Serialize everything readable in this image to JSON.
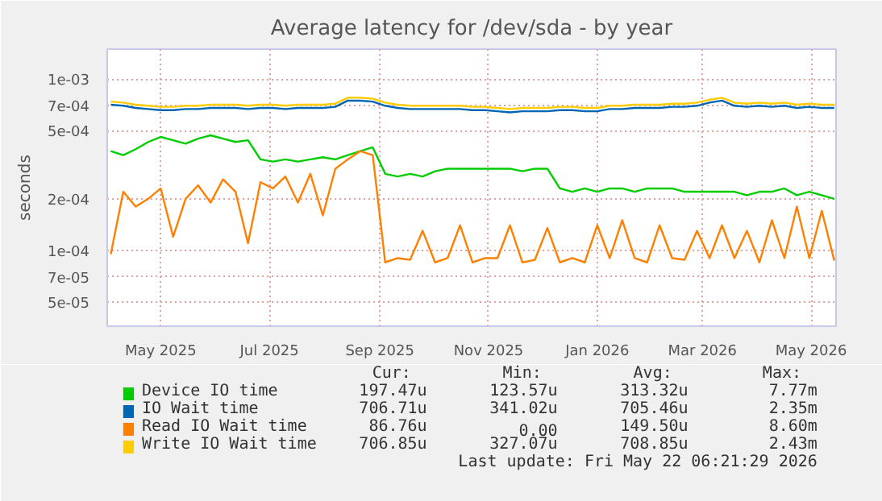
{
  "chart_data": {
    "type": "line",
    "title": "Average latency for /dev/sda - by year",
    "ylabel": "seconds",
    "log": true,
    "grid": true,
    "legend": "bottom",
    "line_style": "solid",
    "marker": "none",
    "x": [
      "2025-04-03",
      "2025-04-10",
      "2025-04-17",
      "2025-04-24",
      "2025-05-01",
      "2025-05-08",
      "2025-05-15",
      "2025-05-22",
      "2025-05-29",
      "2025-06-05",
      "2025-06-12",
      "2025-06-19",
      "2025-06-26",
      "2025-07-03",
      "2025-07-10",
      "2025-07-17",
      "2025-07-24",
      "2025-07-31",
      "2025-08-07",
      "2025-08-14",
      "2025-08-21",
      "2025-08-28",
      "2025-09-04",
      "2025-09-11",
      "2025-09-18",
      "2025-09-25",
      "2025-10-02",
      "2025-10-09",
      "2025-10-16",
      "2025-10-23",
      "2025-10-30",
      "2025-11-06",
      "2025-11-13",
      "2025-11-20",
      "2025-11-27",
      "2025-12-04",
      "2025-12-11",
      "2025-12-18",
      "2025-12-25",
      "2026-01-01",
      "2026-01-08",
      "2026-01-15",
      "2026-01-22",
      "2026-01-29",
      "2026-02-05",
      "2026-02-12",
      "2026-02-19",
      "2026-02-26",
      "2026-03-05",
      "2026-03-12",
      "2026-03-19",
      "2026-03-26",
      "2026-04-02",
      "2026-04-09",
      "2026-04-16",
      "2026-04-23",
      "2026-04-30",
      "2026-05-07",
      "2026-05-14"
    ],
    "xlim": [
      "2025-04-01",
      "2026-05-15"
    ],
    "xticks": [
      {
        "value": "2025-05-01",
        "label": "May 2025"
      },
      {
        "value": "2025-07-01",
        "label": "Jul 2025"
      },
      {
        "value": "2025-09-01",
        "label": "Sep 2025"
      },
      {
        "value": "2025-11-01",
        "label": "Nov 2025"
      },
      {
        "value": "2026-01-01",
        "label": "Jan 2026"
      },
      {
        "value": "2026-03-01",
        "label": "Mar 2026"
      },
      {
        "value": "2026-05-01",
        "label": "May 2026"
      }
    ],
    "ylim": [
      3.6e-05,
      0.0015
    ],
    "yticks": [
      {
        "value": 5e-05,
        "label": "5e-05"
      },
      {
        "value": 7e-05,
        "label": "7e-05"
      },
      {
        "value": 0.0001,
        "label": "1e-04"
      },
      {
        "value": 0.0002,
        "label": "2e-04"
      },
      {
        "value": 0.0005,
        "label": "5e-04"
      },
      {
        "value": 0.0007,
        "label": "7e-04"
      },
      {
        "value": 0.001,
        "label": "1e-03"
      }
    ],
    "series": [
      {
        "name": "Device IO time",
        "color": "#00cc00",
        "values": [
          0.00038,
          0.00036,
          0.00039,
          0.00043,
          0.00046,
          0.00044,
          0.00042,
          0.00045,
          0.00047,
          0.00045,
          0.00043,
          0.00044,
          0.00034,
          0.00033,
          0.00034,
          0.00033,
          0.00034,
          0.00035,
          0.00034,
          0.00036,
          0.00038,
          0.0004,
          0.00028,
          0.00027,
          0.00028,
          0.00027,
          0.00029,
          0.0003,
          0.0003,
          0.0003,
          0.0003,
          0.0003,
          0.0003,
          0.00029,
          0.0003,
          0.0003,
          0.00023,
          0.00022,
          0.00023,
          0.00022,
          0.00023,
          0.00023,
          0.00022,
          0.00023,
          0.00023,
          0.00023,
          0.00022,
          0.00022,
          0.00022,
          0.00022,
          0.00022,
          0.00021,
          0.00022,
          0.00022,
          0.00023,
          0.00021,
          0.00022,
          0.00021,
          0.0002
        ]
      },
      {
        "name": "IO Wait time",
        "color": "#0066b3",
        "values": [
          0.00071,
          0.0007,
          0.00068,
          0.00067,
          0.00066,
          0.00066,
          0.00067,
          0.00067,
          0.00068,
          0.00068,
          0.00068,
          0.00067,
          0.00068,
          0.00068,
          0.00067,
          0.00068,
          0.00068,
          0.00068,
          0.00069,
          0.00075,
          0.00075,
          0.00074,
          0.0007,
          0.00068,
          0.00067,
          0.00067,
          0.00067,
          0.00067,
          0.00067,
          0.00066,
          0.00066,
          0.00065,
          0.00064,
          0.00065,
          0.00065,
          0.00065,
          0.00066,
          0.00066,
          0.00065,
          0.00065,
          0.00067,
          0.00067,
          0.00068,
          0.00068,
          0.00068,
          0.00069,
          0.00069,
          0.0007,
          0.00073,
          0.00075,
          0.0007,
          0.00069,
          0.0007,
          0.00069,
          0.0007,
          0.00068,
          0.00069,
          0.00068,
          0.00068
        ]
      },
      {
        "name": "Read IO Wait time",
        "color": "#ff8000",
        "values": [
          9.5e-05,
          0.00022,
          0.00018,
          0.0002,
          0.00023,
          0.00012,
          0.0002,
          0.00024,
          0.00019,
          0.00026,
          0.00022,
          0.00011,
          0.00025,
          0.00023,
          0.00027,
          0.00019,
          0.00028,
          0.00016,
          0.0003,
          0.00034,
          0.00038,
          0.00036,
          8.5e-05,
          9e-05,
          8.8e-05,
          0.00013,
          8.5e-05,
          9e-05,
          0.00014,
          8.5e-05,
          9e-05,
          9e-05,
          0.00014,
          8.5e-05,
          8.8e-05,
          0.000135,
          8.5e-05,
          9e-05,
          8.5e-05,
          0.00014,
          9e-05,
          0.00015,
          9e-05,
          8.5e-05,
          0.00014,
          9e-05,
          8.8e-05,
          0.00013,
          9e-05,
          0.00014,
          9e-05,
          0.00013,
          8.5e-05,
          0.00015,
          9e-05,
          0.00018,
          9e-05,
          0.00017,
          8.7e-05
        ]
      },
      {
        "name": "Write IO Wait time",
        "color": "#ffcc00",
        "values": [
          0.00074,
          0.00073,
          0.00071,
          0.0007,
          0.00069,
          0.00069,
          0.0007,
          0.0007,
          0.00071,
          0.00071,
          0.00071,
          0.0007,
          0.00071,
          0.00071,
          0.0007,
          0.00071,
          0.00071,
          0.00071,
          0.00072,
          0.00078,
          0.00078,
          0.00077,
          0.00073,
          0.00071,
          0.0007,
          0.0007,
          0.0007,
          0.0007,
          0.0007,
          0.00069,
          0.00069,
          0.00068,
          0.00067,
          0.00068,
          0.00068,
          0.00068,
          0.00069,
          0.00069,
          0.00068,
          0.00068,
          0.0007,
          0.0007,
          0.00071,
          0.00071,
          0.00071,
          0.00072,
          0.00072,
          0.00073,
          0.00076,
          0.00078,
          0.00073,
          0.00072,
          0.00073,
          0.00072,
          0.00073,
          0.00071,
          0.00072,
          0.00071,
          0.00071
        ]
      }
    ],
    "annotations": [
      "Cur:",
      "Min:",
      "Avg:",
      "Max:",
      "197.47u",
      "123.57u",
      "313.32u",
      "7.77m",
      "706.71u",
      "341.02u",
      "705.46u",
      "2.35m",
      "86.76u",
      "0.00",
      "149.50u",
      "8.60m",
      "706.85u",
      "327.07u",
      "708.85u",
      "2.43m",
      "Last update: Fri May 22 06:21:29 2026"
    ]
  }
}
